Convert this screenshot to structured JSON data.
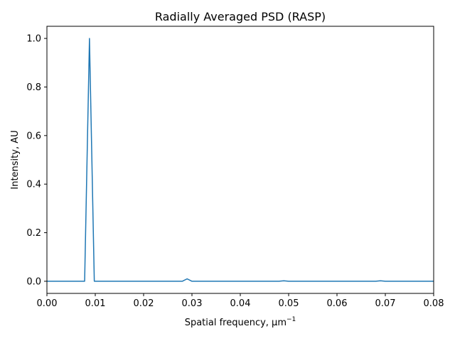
{
  "chart_data": {
    "type": "line",
    "title": "Radially Averaged PSD (RASP)",
    "xlabel": "Spatial frequency, μm",
    "xlabel_superscript": "−1",
    "ylabel": "Intensity, AU",
    "xlim": [
      0.0,
      0.08
    ],
    "ylim": [
      -0.05,
      1.05
    ],
    "xticks": [
      0.0,
      0.01,
      0.02,
      0.03,
      0.04,
      0.05,
      0.06,
      0.07,
      0.08
    ],
    "xtick_labels": [
      "0.00",
      "0.01",
      "0.02",
      "0.03",
      "0.04",
      "0.05",
      "0.06",
      "0.07",
      "0.08"
    ],
    "yticks": [
      0.0,
      0.2,
      0.4,
      0.6,
      0.8,
      1.0
    ],
    "ytick_labels": [
      "0.0",
      "0.2",
      "0.4",
      "0.6",
      "0.8",
      "1.0"
    ],
    "grid": false,
    "series": [
      {
        "color": "#1f77b4",
        "x": [
          0.0,
          0.0078,
          0.0088,
          0.0098,
          0.01,
          0.028,
          0.029,
          0.03,
          0.048,
          0.049,
          0.05,
          0.068,
          0.069,
          0.07,
          0.08
        ],
        "y": [
          0.0,
          0.0,
          1.0,
          0.0,
          0.0,
          0.0,
          0.01,
          0.0,
          0.0,
          0.002,
          0.0,
          0.0,
          0.002,
          0.0,
          0.0
        ]
      }
    ]
  }
}
